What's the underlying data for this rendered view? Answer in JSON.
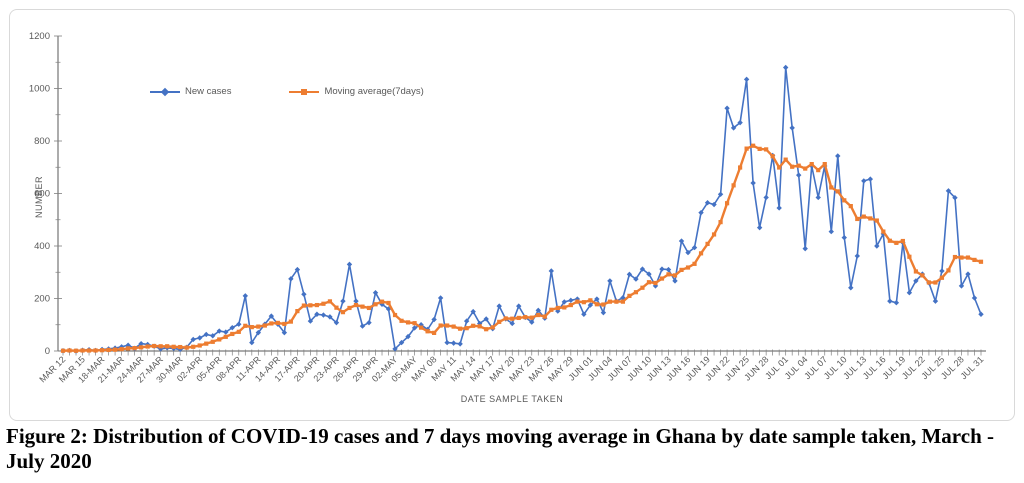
{
  "figure": {
    "caption": "Figure 2: Distribution of COVID-19 cases and 7 days moving average in Ghana by date sample taken, March - July 2020"
  },
  "chart_data": {
    "type": "line",
    "title": "",
    "xlabel": "DATE SAMPLE TAKEN",
    "ylabel": "NUMBER",
    "ylim": [
      0,
      1200
    ],
    "y_tick_labels": [
      0,
      200,
      400,
      600,
      800,
      1000,
      1200
    ],
    "y_minor_step": 100,
    "grid": false,
    "legend_position": "top-left-inside",
    "text_color": "#595959",
    "axis_color": "#595959",
    "tick_color": "#7f7f7f",
    "x_tick_every_days": 3,
    "x_tick_labels": [
      "MAR 12",
      "MAR 15",
      "18-MAR",
      "21-MAR",
      "24-MAR",
      "27-MAR",
      "30-MAR",
      "02-APR",
      "05-APR",
      "08-APR",
      "11-APR",
      "14-APR",
      "17-APR",
      "20-APR",
      "23-APR",
      "26-APR",
      "29-APR",
      "02-MAY",
      "05-MAY",
      "MAY 08",
      "MAY 11",
      "MAY 14",
      "MAY 17",
      "MAY 20",
      "MAY 23",
      "MAY 26",
      "MAY 29",
      "JUN 01",
      "JUN 04",
      "JUN 07",
      "JUN 10",
      "JUN 13",
      "JUN 16",
      "JUN 19",
      "JUN 22",
      "JUN 25",
      "JUN 28",
      "JUL 01",
      "JUL 04",
      "JUL 07",
      "JUL 10",
      "JUL 13",
      "JUL 16",
      "JUL 19",
      "JUL 22",
      "JUL 25",
      "JUL 28",
      "JUL 31"
    ],
    "series": [
      {
        "name": "New cases",
        "color": "#4472C4",
        "marker": "diamond",
        "values": [
          1,
          2,
          0,
          3,
          5,
          2,
          6,
          8,
          11,
          16,
          22,
          10,
          28,
          25,
          18,
          8,
          12,
          10,
          6,
          14,
          44,
          50,
          63,
          58,
          76,
          72,
          89,
          102,
          210,
          32,
          70,
          102,
          133,
          102,
          70,
          275,
          310,
          216,
          114,
          140,
          137,
          130,
          108,
          190,
          330,
          190,
          95,
          108,
          222,
          178,
          160,
          8,
          32,
          55,
          88,
          100,
          82,
          120,
          202,
          32,
          30,
          27,
          114,
          150,
          105,
          122,
          85,
          171,
          122,
          105,
          171,
          128,
          110,
          155,
          125,
          305,
          152,
          187,
          193,
          198,
          140,
          175,
          198,
          146,
          267,
          190,
          203,
          292,
          274,
          312,
          293,
          248,
          312,
          310,
          267,
          419,
          375,
          394,
          527,
          565,
          558,
          597,
          925,
          850,
          870,
          1035,
          640,
          470,
          585,
          745,
          545,
          1080,
          850,
          670,
          390,
          705,
          585,
          705,
          455,
          743,
          432,
          241,
          362,
          648,
          655,
          400,
          446,
          190,
          184,
          413,
          222,
          267,
          293,
          260,
          190,
          305,
          610,
          584,
          248,
          293,
          202,
          140
        ]
      },
      {
        "name": "Moving average(7days)",
        "color": "#ED7D31",
        "marker": "square",
        "values": [
          1,
          2,
          1,
          2,
          2,
          2,
          3,
          4,
          5,
          7,
          10,
          11,
          14,
          17,
          19,
          18,
          18,
          16,
          15,
          13,
          16,
          21,
          28,
          35,
          44,
          54,
          65,
          73,
          96,
          91,
          93,
          97,
          105,
          107,
          103,
          112,
          152,
          173,
          174,
          175,
          180,
          189,
          165,
          148,
          164,
          175,
          169,
          164,
          178,
          188,
          183,
          137,
          115,
          109,
          106,
          89,
          75,
          69,
          97,
          97,
          93,
          85,
          87,
          96,
          94,
          83,
          90,
          111,
          124,
          123,
          126,
          129,
          127,
          137,
          131,
          157,
          164,
          166,
          175,
          188,
          186,
          193,
          178,
          177,
          188,
          188,
          188,
          210,
          224,
          241,
          262,
          259,
          276,
          292,
          288,
          309,
          318,
          332,
          372,
          408,
          444,
          491,
          563,
          631,
          699,
          771,
          782,
          770,
          768,
          742,
          699,
          729,
          702,
          706,
          695,
          712,
          689,
          712,
          623,
          608,
          574,
          552,
          503,
          512,
          505,
          497,
          455,
          420,
          412,
          419,
          359,
          303,
          288,
          261,
          261,
          279,
          307,
          358,
          356,
          356,
          347,
          340
        ]
      }
    ]
  }
}
